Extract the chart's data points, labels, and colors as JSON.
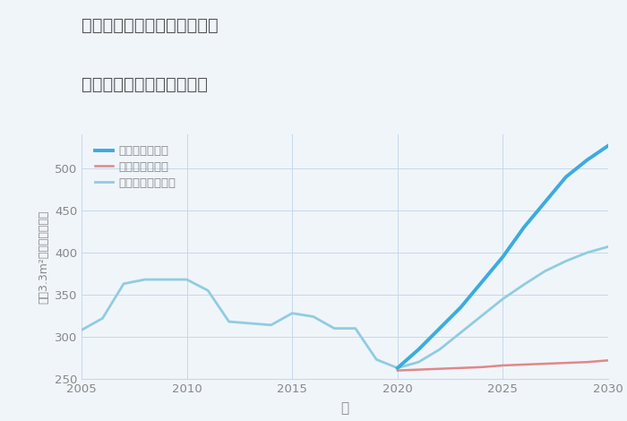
{
  "title_line1": "神奈川県横浜市中区尾上町の",
  "title_line2": "中古マンションの価格推移",
  "xlabel": "年",
  "ylabel_parts": [
    "坪（3.3m²）単価（万円）"
  ],
  "ylim": [
    250,
    540
  ],
  "yticks": [
    250,
    300,
    350,
    400,
    450,
    500
  ],
  "xlim": [
    2005,
    2030
  ],
  "xticks": [
    2005,
    2010,
    2015,
    2020,
    2025,
    2030
  ],
  "background_color": "#f0f5fa",
  "plot_bg_color": "#f0f5fa",
  "grid_color": "#c5d8ea",
  "title_color": "#555555",
  "axis_color": "#888888",
  "good_scenario": {
    "label": "グッドシナリオ",
    "color": "#3aacde",
    "linewidth": 2.8,
    "x": [
      2020,
      2021,
      2022,
      2023,
      2024,
      2025,
      2026,
      2027,
      2028,
      2029,
      2030
    ],
    "y": [
      263,
      285,
      310,
      335,
      365,
      395,
      430,
      460,
      490,
      510,
      527
    ]
  },
  "bad_scenario": {
    "label": "バッドシナリオ",
    "color": "#e08888",
    "linewidth": 1.8,
    "x": [
      2020,
      2021,
      2022,
      2023,
      2024,
      2025,
      2026,
      2027,
      2028,
      2029,
      2030
    ],
    "y": [
      260,
      261,
      262,
      263,
      264,
      266,
      267,
      268,
      269,
      270,
      272
    ]
  },
  "normal_scenario": {
    "label": "ノーマルシナリオ",
    "color": "#90cce0",
    "linewidth": 2.0,
    "x_hist": [
      2005,
      2006,
      2007,
      2008,
      2009,
      2010,
      2011,
      2012,
      2013,
      2014,
      2015,
      2016,
      2017,
      2018,
      2019,
      2020
    ],
    "y_hist": [
      308,
      322,
      363,
      368,
      368,
      368,
      355,
      318,
      316,
      314,
      328,
      324,
      310,
      310,
      273,
      263
    ],
    "x_future": [
      2020,
      2021,
      2022,
      2023,
      2024,
      2025,
      2026,
      2027,
      2028,
      2029,
      2030
    ],
    "y_future": [
      263,
      270,
      285,
      305,
      325,
      345,
      362,
      378,
      390,
      400,
      407
    ]
  }
}
